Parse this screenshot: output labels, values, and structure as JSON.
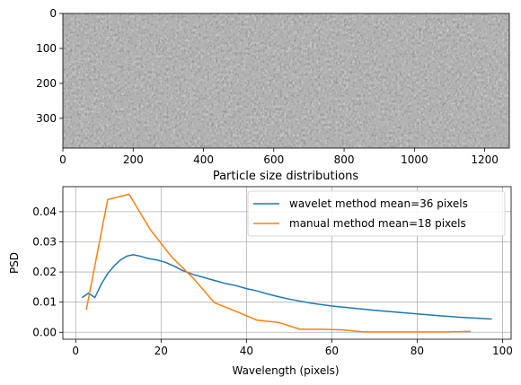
{
  "chart_data": [
    {
      "type": "image",
      "xlim": [
        0,
        1270
      ],
      "ylim": [
        385,
        0
      ],
      "xticks": [
        0,
        200,
        400,
        600,
        800,
        1000,
        1200
      ],
      "yticks": [
        0,
        100,
        200,
        300
      ],
      "colormap": "gray"
    },
    {
      "type": "line",
      "title": "Particle size distributions",
      "xlabel": "Wavelength (pixels)",
      "ylabel": "PSD",
      "xlim": [
        -3,
        102
      ],
      "ylim": [
        -0.0023,
        0.0483
      ],
      "xticks": [
        0,
        20,
        40,
        60,
        80,
        100
      ],
      "yticks": [
        0.0,
        0.01,
        0.02,
        0.03,
        0.04
      ],
      "ytick_labels": [
        "0.00",
        "0.01",
        "0.02",
        "0.03",
        "0.04"
      ],
      "grid": true,
      "legend": "top-right",
      "series": [
        {
          "name": "wavelet method mean=36 pixels",
          "color": "#1f77b4",
          "x": [
            1.5,
            3,
            4.5,
            6,
            7.5,
            9,
            10.5,
            12,
            13.5,
            15,
            17,
            19,
            21,
            23,
            25,
            27.5,
            30,
            32.5,
            35,
            37.5,
            40,
            42.5,
            45,
            47.5,
            50,
            55,
            60,
            65,
            70,
            75,
            80,
            85,
            90,
            97.5
          ],
          "y": [
            0.0115,
            0.013,
            0.0115,
            0.016,
            0.0195,
            0.022,
            0.024,
            0.0253,
            0.0257,
            0.0253,
            0.0245,
            0.024,
            0.0232,
            0.022,
            0.0205,
            0.0192,
            0.0182,
            0.0172,
            0.0162,
            0.0155,
            0.0145,
            0.0137,
            0.0127,
            0.0118,
            0.011,
            0.0097,
            0.0087,
            0.008,
            0.0073,
            0.0067,
            0.0061,
            0.0055,
            0.005,
            0.0044
          ]
        },
        {
          "name": "manual method mean=18 pixels",
          "color": "#ff7f0e",
          "x": [
            2.5,
            7.5,
            12.5,
            17.5,
            22.5,
            27.5,
            32.5,
            37.5,
            42.5,
            47.5,
            52.5,
            57.5,
            62.5,
            67.5,
            72.5,
            77.5,
            82.5,
            87.5,
            92.5
          ],
          "y": [
            0.0075,
            0.044,
            0.0458,
            0.034,
            0.025,
            0.018,
            0.0098,
            0.007,
            0.004,
            0.0033,
            0.001,
            0.001,
            0.0008,
            0.0001,
            0.0001,
            0.0001,
            0.0001,
            0.0001,
            0.0003
          ]
        }
      ]
    }
  ]
}
